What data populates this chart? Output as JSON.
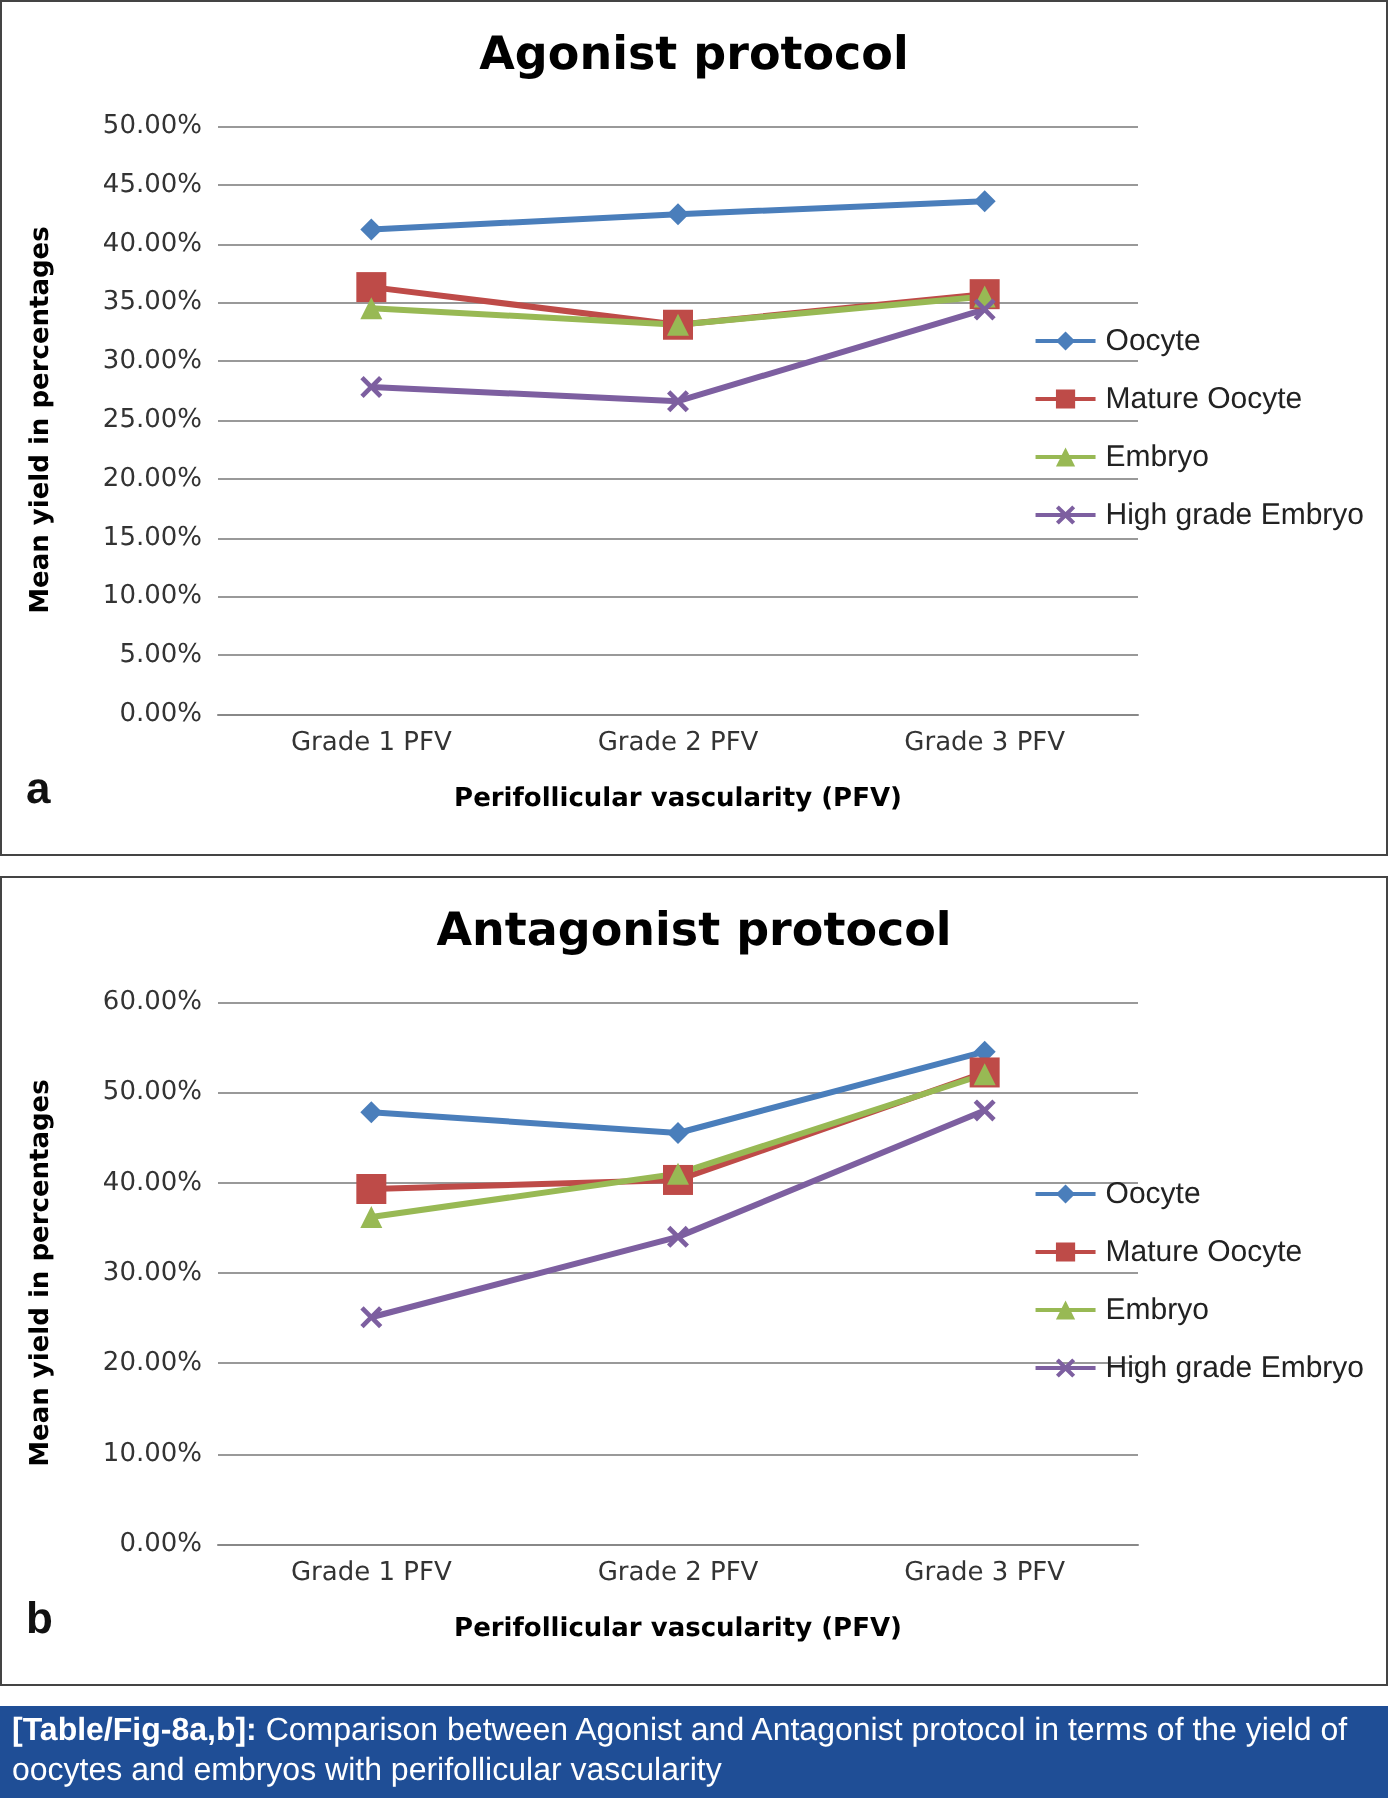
{
  "chart_data": [
    {
      "type": "line",
      "title": "Agonist protocol",
      "xlabel": "Perifollicular vascularity (PFV)",
      "ylabel": "Mean yield in percentages",
      "annotations": [
        "a"
      ],
      "categories": [
        "Grade 1 PFV",
        "Grade 2 PFV",
        "Grade 3 PFV"
      ],
      "series": [
        {
          "name": "Oocyte",
          "color": "#4a7ebb",
          "marker": "diamond",
          "values": [
            41.2,
            42.5,
            43.6
          ]
        },
        {
          "name": "Mature Oocyte",
          "color": "#be4b48",
          "marker": "square",
          "values": [
            36.3,
            33.1,
            35.7
          ]
        },
        {
          "name": "Embryo",
          "color": "#98b954",
          "marker": "triangle",
          "values": [
            34.5,
            33.1,
            35.5
          ]
        },
        {
          "name": "High grade Embryo",
          "color": "#7d5fa0",
          "marker": "cross",
          "values": [
            27.8,
            26.6,
            34.4
          ]
        }
      ],
      "ylim": [
        0,
        50
      ],
      "yticks": [
        {
          "value": 0,
          "label": "0.00%"
        },
        {
          "value": 5,
          "label": "5.00%"
        },
        {
          "value": 10,
          "label": "10.00%"
        },
        {
          "value": 15,
          "label": "15.00%"
        },
        {
          "value": 20,
          "label": "20.00%"
        },
        {
          "value": 25,
          "label": "25.00%"
        },
        {
          "value": 30,
          "label": "30.00%"
        },
        {
          "value": 35,
          "label": "35.00%"
        },
        {
          "value": 40,
          "label": "40.00%"
        },
        {
          "value": 45,
          "label": "45.00%"
        },
        {
          "value": 50,
          "label": "50.00%"
        }
      ],
      "grid": "y",
      "legend": "right"
    },
    {
      "type": "line",
      "title": "Antagonist protocol",
      "xlabel": "Perifollicular vascularity (PFV)",
      "ylabel": "Mean yield in percentages",
      "annotations": [
        "b",
        "[Table/Fig-8a,b]: Comparison between Agonist and Antagonist protocol in terms of the yield of oocytes and embryos with perifollicular vascularity"
      ],
      "categories": [
        "Grade 1 PFV",
        "Grade 2 PFV",
        "Grade 3 PFV"
      ],
      "series": [
        {
          "name": "Oocyte",
          "color": "#4a7ebb",
          "marker": "diamond",
          "values": [
            47.8,
            45.5,
            54.5
          ]
        },
        {
          "name": "Mature Oocyte",
          "color": "#be4b48",
          "marker": "square",
          "values": [
            39.3,
            40.3,
            52.2
          ]
        },
        {
          "name": "Embryo",
          "color": "#98b954",
          "marker": "triangle",
          "values": [
            36.2,
            41.0,
            52.0
          ]
        },
        {
          "name": "High grade Embryo",
          "color": "#7d5fa0",
          "marker": "cross",
          "values": [
            25.1,
            34.0,
            48.0
          ]
        }
      ],
      "ylim": [
        0,
        60
      ],
      "yticks": [
        {
          "value": 0,
          "label": "0.00%"
        },
        {
          "value": 10,
          "label": "10.00%"
        },
        {
          "value": 20,
          "label": "20.00%"
        },
        {
          "value": 30,
          "label": "30.00%"
        },
        {
          "value": 40,
          "label": "40.00%"
        },
        {
          "value": 50,
          "label": "50.00%"
        },
        {
          "value": 60,
          "label": "60.00%"
        }
      ],
      "grid": "y",
      "legend": "right"
    }
  ]
}
